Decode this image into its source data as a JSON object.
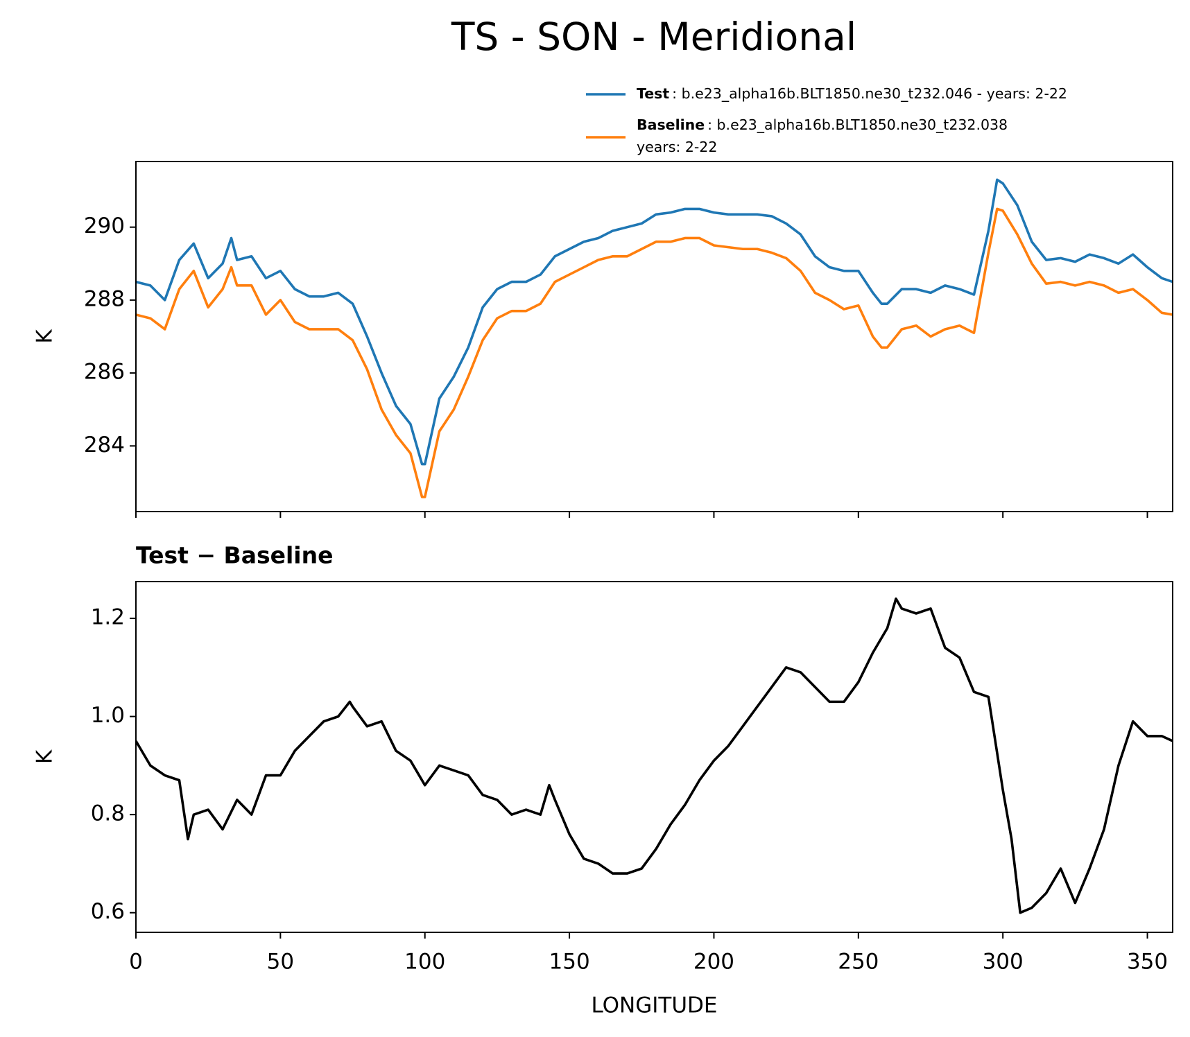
{
  "title": "TS - SON - Meridional",
  "chart_data": [
    {
      "type": "line",
      "ylabel": "K",
      "x": [
        0,
        5,
        10,
        15,
        20,
        25,
        30,
        33,
        35,
        40,
        45,
        50,
        55,
        60,
        65,
        70,
        75,
        80,
        85,
        90,
        95,
        99,
        100,
        105,
        110,
        115,
        120,
        125,
        130,
        135,
        140,
        145,
        150,
        155,
        160,
        165,
        170,
        175,
        180,
        185,
        190,
        195,
        200,
        205,
        210,
        215,
        220,
        225,
        230,
        235,
        240,
        245,
        250,
        255,
        258,
        260,
        265,
        270,
        275,
        280,
        285,
        290,
        295,
        298,
        300,
        305,
        310,
        315,
        320,
        325,
        330,
        335,
        340,
        345,
        350,
        355,
        358.75
      ],
      "series": [
        {
          "name": "Test",
          "label_lines": [
            ": b.e23_alpha16b.BLT1850.ne30_t232.046 - years: 2-22"
          ],
          "color": "#1f77b4",
          "values": [
            288.5,
            288.4,
            288.0,
            289.1,
            289.55,
            288.6,
            289.0,
            289.7,
            289.1,
            289.2,
            288.6,
            288.8,
            288.3,
            288.1,
            288.1,
            288.2,
            287.9,
            287.0,
            286.0,
            285.1,
            284.6,
            283.5,
            283.5,
            285.3,
            285.9,
            286.7,
            287.8,
            288.3,
            288.5,
            288.5,
            288.7,
            289.2,
            289.4,
            289.6,
            289.7,
            289.9,
            290.0,
            290.1,
            290.35,
            290.4,
            290.5,
            290.5,
            290.4,
            290.35,
            290.35,
            290.35,
            290.3,
            290.1,
            289.8,
            289.2,
            288.9,
            288.8,
            288.8,
            288.2,
            287.9,
            287.9,
            288.3,
            288.3,
            288.2,
            288.4,
            288.3,
            288.15,
            289.9,
            291.3,
            291.2,
            290.6,
            289.6,
            289.1,
            289.15,
            289.05,
            289.25,
            289.15,
            289.0,
            289.25,
            288.9,
            288.6,
            288.5
          ]
        },
        {
          "name": "Baseline",
          "label_lines": [
            ": b.e23_alpha16b.BLT1850.ne30_t232.038",
            "years: 2-22"
          ],
          "color": "#ff7f0e",
          "values": [
            287.6,
            287.5,
            287.2,
            288.3,
            288.8,
            287.8,
            288.3,
            288.9,
            288.4,
            288.4,
            287.6,
            288.0,
            287.4,
            287.2,
            287.2,
            287.2,
            286.9,
            286.1,
            285.0,
            284.3,
            283.8,
            282.6,
            282.6,
            284.4,
            285.0,
            285.9,
            286.9,
            287.5,
            287.7,
            287.7,
            287.9,
            288.5,
            288.7,
            288.9,
            289.1,
            289.2,
            289.2,
            289.4,
            289.6,
            289.6,
            289.7,
            289.7,
            289.5,
            289.45,
            289.4,
            289.4,
            289.3,
            289.15,
            288.8,
            288.2,
            288.0,
            287.75,
            287.85,
            287.0,
            286.7,
            286.7,
            287.2,
            287.3,
            287.0,
            287.2,
            287.3,
            287.1,
            289.3,
            290.5,
            290.45,
            289.8,
            289.0,
            288.45,
            288.5,
            288.4,
            288.5,
            288.4,
            288.2,
            288.3,
            288.0,
            287.65,
            287.6
          ]
        }
      ],
      "xlim": [
        0,
        358.75
      ],
      "xticks": [
        0,
        50,
        100,
        150,
        200,
        250,
        300,
        350
      ],
      "xtick_labels": false,
      "ylim": [
        282.2,
        291.8
      ],
      "yticks": [
        284,
        286,
        288,
        290
      ],
      "legend": "top-right"
    },
    {
      "type": "line",
      "title": "Test − Baseline",
      "xlabel": "LONGITUDE",
      "ylabel": "K",
      "color": "#000000",
      "x": [
        0,
        5,
        10,
        15,
        18,
        20,
        25,
        30,
        35,
        40,
        45,
        50,
        55,
        60,
        65,
        70,
        74,
        75,
        80,
        85,
        90,
        95,
        100,
        105,
        110,
        115,
        120,
        125,
        130,
        135,
        140,
        143,
        145,
        150,
        155,
        160,
        165,
        170,
        175,
        180,
        185,
        190,
        195,
        200,
        205,
        210,
        215,
        220,
        225,
        230,
        235,
        240,
        245,
        250,
        255,
        260,
        263,
        265,
        270,
        275,
        280,
        285,
        290,
        295,
        300,
        303,
        306,
        310,
        315,
        320,
        325,
        330,
        335,
        340,
        345,
        350,
        355,
        358.75
      ],
      "values": [
        0.95,
        0.9,
        0.88,
        0.87,
        0.75,
        0.8,
        0.81,
        0.77,
        0.83,
        0.8,
        0.88,
        0.88,
        0.93,
        0.96,
        0.99,
        1.0,
        1.03,
        1.02,
        0.98,
        0.99,
        0.93,
        0.91,
        0.86,
        0.9,
        0.89,
        0.88,
        0.84,
        0.83,
        0.8,
        0.81,
        0.8,
        0.86,
        0.83,
        0.76,
        0.71,
        0.7,
        0.68,
        0.68,
        0.69,
        0.73,
        0.78,
        0.82,
        0.87,
        0.91,
        0.94,
        0.98,
        1.02,
        1.06,
        1.1,
        1.09,
        1.06,
        1.03,
        1.03,
        1.07,
        1.13,
        1.18,
        1.24,
        1.22,
        1.21,
        1.22,
        1.14,
        1.12,
        1.05,
        1.04,
        0.85,
        0.75,
        0.6,
        0.61,
        0.64,
        0.69,
        0.62,
        0.69,
        0.77,
        0.9,
        0.99,
        0.96,
        0.96,
        0.95
      ],
      "xlim": [
        0,
        358.75
      ],
      "xticks": [
        0,
        50,
        100,
        150,
        200,
        250,
        300,
        350
      ],
      "xtick_labels": true,
      "ylim": [
        0.56,
        1.275
      ],
      "yticks": [
        0.6,
        0.8,
        {
          "value": 1,
          "label": "1.0"
        },
        1.2
      ]
    }
  ]
}
